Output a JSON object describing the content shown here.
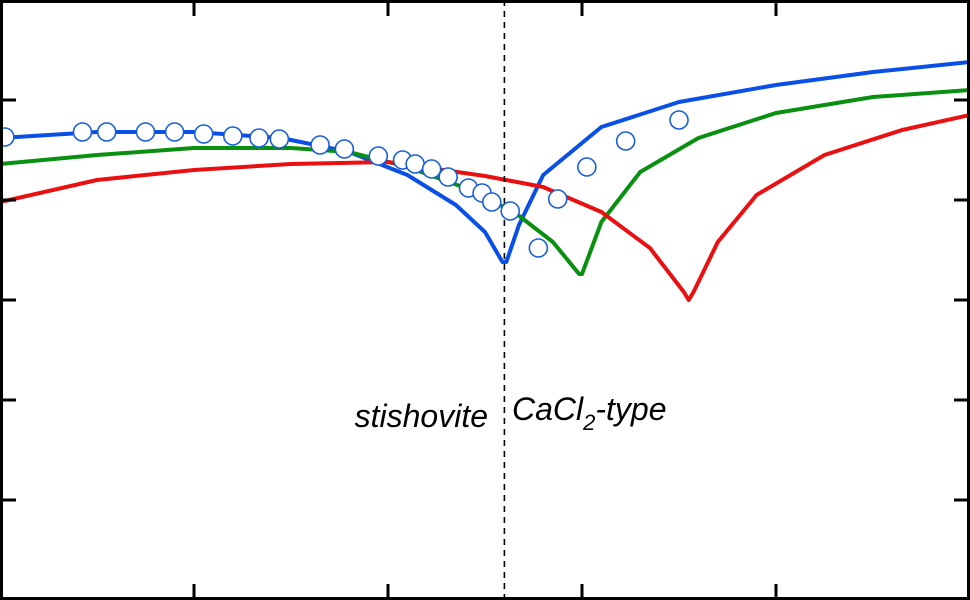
{
  "chart_data": {
    "type": "line",
    "title": "",
    "xlabel": "",
    "ylabel": "",
    "xlim": [
      0,
      10
    ],
    "ylim": [
      0,
      6
    ],
    "xticks": [
      2,
      4,
      6,
      8
    ],
    "yticks": [
      1,
      2,
      3,
      4,
      5
    ],
    "grid": false,
    "legend": "none",
    "transition_x": 5.2,
    "annotations": {
      "left": "stishovite",
      "right_main": "CaCl",
      "right_sub": "2",
      "right_suffix": "-type"
    },
    "series": [
      {
        "color": "#0a4fe6",
        "points": [
          [
            0,
            4.62
          ],
          [
            1,
            4.68
          ],
          [
            2,
            4.68
          ],
          [
            2.9,
            4.62
          ],
          [
            3.6,
            4.48
          ],
          [
            4.2,
            4.25
          ],
          [
            4.7,
            3.95
          ],
          [
            5.0,
            3.68
          ],
          [
            5.18,
            3.38
          ],
          [
            5.22,
            3.38
          ],
          [
            5.35,
            3.75
          ],
          [
            5.6,
            4.25
          ],
          [
            6.2,
            4.73
          ],
          [
            7,
            4.98
          ],
          [
            8,
            5.15
          ],
          [
            9,
            5.28
          ],
          [
            10,
            5.38
          ]
        ]
      },
      {
        "color": "#0a9010",
        "points": [
          [
            0,
            4.36
          ],
          [
            1,
            4.45
          ],
          [
            2,
            4.52
          ],
          [
            3,
            4.52
          ],
          [
            3.6,
            4.48
          ],
          [
            4.2,
            4.33
          ],
          [
            4.8,
            4.12
          ],
          [
            5.3,
            3.88
          ],
          [
            5.7,
            3.58
          ],
          [
            5.97,
            3.26
          ],
          [
            6.0,
            3.26
          ],
          [
            6.2,
            3.78
          ],
          [
            6.6,
            4.28
          ],
          [
            7.2,
            4.62
          ],
          [
            8,
            4.87
          ],
          [
            9,
            5.03
          ],
          [
            10,
            5.1
          ]
        ]
      },
      {
        "color": "#e81010",
        "points": [
          [
            0,
            3.98
          ],
          [
            1,
            4.2
          ],
          [
            2,
            4.3
          ],
          [
            3,
            4.36
          ],
          [
            4,
            4.38
          ],
          [
            5,
            4.24
          ],
          [
            5.6,
            4.13
          ],
          [
            6.2,
            3.88
          ],
          [
            6.7,
            3.52
          ],
          [
            7.05,
            3.08
          ],
          [
            7.1,
            3.0
          ],
          [
            7.15,
            3.08
          ],
          [
            7.4,
            3.58
          ],
          [
            7.8,
            4.05
          ],
          [
            8.5,
            4.45
          ],
          [
            9.3,
            4.7
          ],
          [
            10,
            4.85
          ]
        ]
      },
      {
        "type": "scatter",
        "marker": "open-circle",
        "color": "#1a5fd8",
        "points": [
          [
            0.05,
            4.63
          ],
          [
            0.85,
            4.68
          ],
          [
            1.1,
            4.68
          ],
          [
            1.5,
            4.68
          ],
          [
            1.8,
            4.68
          ],
          [
            2.1,
            4.66
          ],
          [
            2.4,
            4.64
          ],
          [
            2.67,
            4.62
          ],
          [
            2.88,
            4.61
          ],
          [
            3.3,
            4.55
          ],
          [
            3.55,
            4.51
          ],
          [
            3.9,
            4.44
          ],
          [
            4.15,
            4.4
          ],
          [
            4.28,
            4.36
          ],
          [
            4.45,
            4.31
          ],
          [
            4.62,
            4.23
          ],
          [
            4.83,
            4.12
          ],
          [
            4.97,
            4.07
          ],
          [
            5.07,
            3.98
          ],
          [
            5.26,
            3.89
          ],
          [
            5.55,
            3.52
          ],
          [
            5.75,
            4.01
          ],
          [
            6.05,
            4.33
          ],
          [
            6.45,
            4.59
          ],
          [
            7.0,
            4.8
          ]
        ]
      }
    ]
  }
}
